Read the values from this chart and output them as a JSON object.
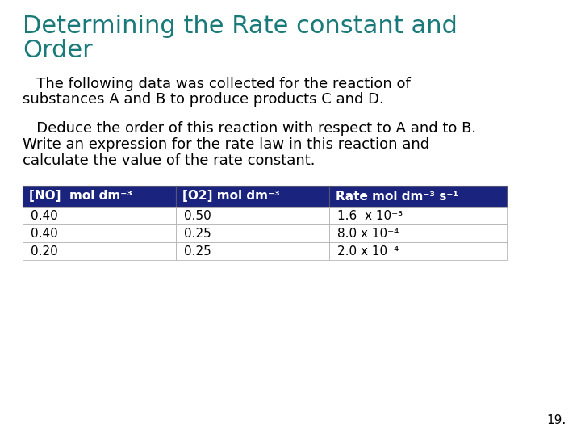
{
  "title_line1": "Determining the Rate constant and",
  "title_line2": "Order",
  "title_color": "#1a7a7a",
  "title_fontsize": 22,
  "body_text1_line1": "   The following data was collected for the reaction of",
  "body_text1_line2": "substances A and B to produce products C and D.",
  "body_text2_line1": "   Deduce the order of this reaction with respect to A and to B.",
  "body_text2_line2": "Write an expression for the rate law in this reaction and",
  "body_text2_line3": "calculate the value of the rate constant.",
  "body_fontsize": 13,
  "table_header": [
    "[NO]  mol dm-3",
    "[O2] mol dm-3",
    "Rate mol dm-3 s-1"
  ],
  "table_rows": [
    [
      "0.40",
      "0.50",
      "1.6  x 10-3"
    ],
    [
      "0.40",
      "0.25",
      "8.0 x 10-4"
    ],
    [
      "0.20",
      "0.25",
      "2.0 x 10-4"
    ]
  ],
  "header_bg": "#1a237e",
  "header_fg": "#ffffff",
  "row_bg": "#ffffff",
  "row_fg": "#000000",
  "table_border": "#999999",
  "page_number": "19.",
  "background_color": "#ffffff",
  "fig_width": 7.2,
  "fig_height": 5.4,
  "dpi": 100
}
